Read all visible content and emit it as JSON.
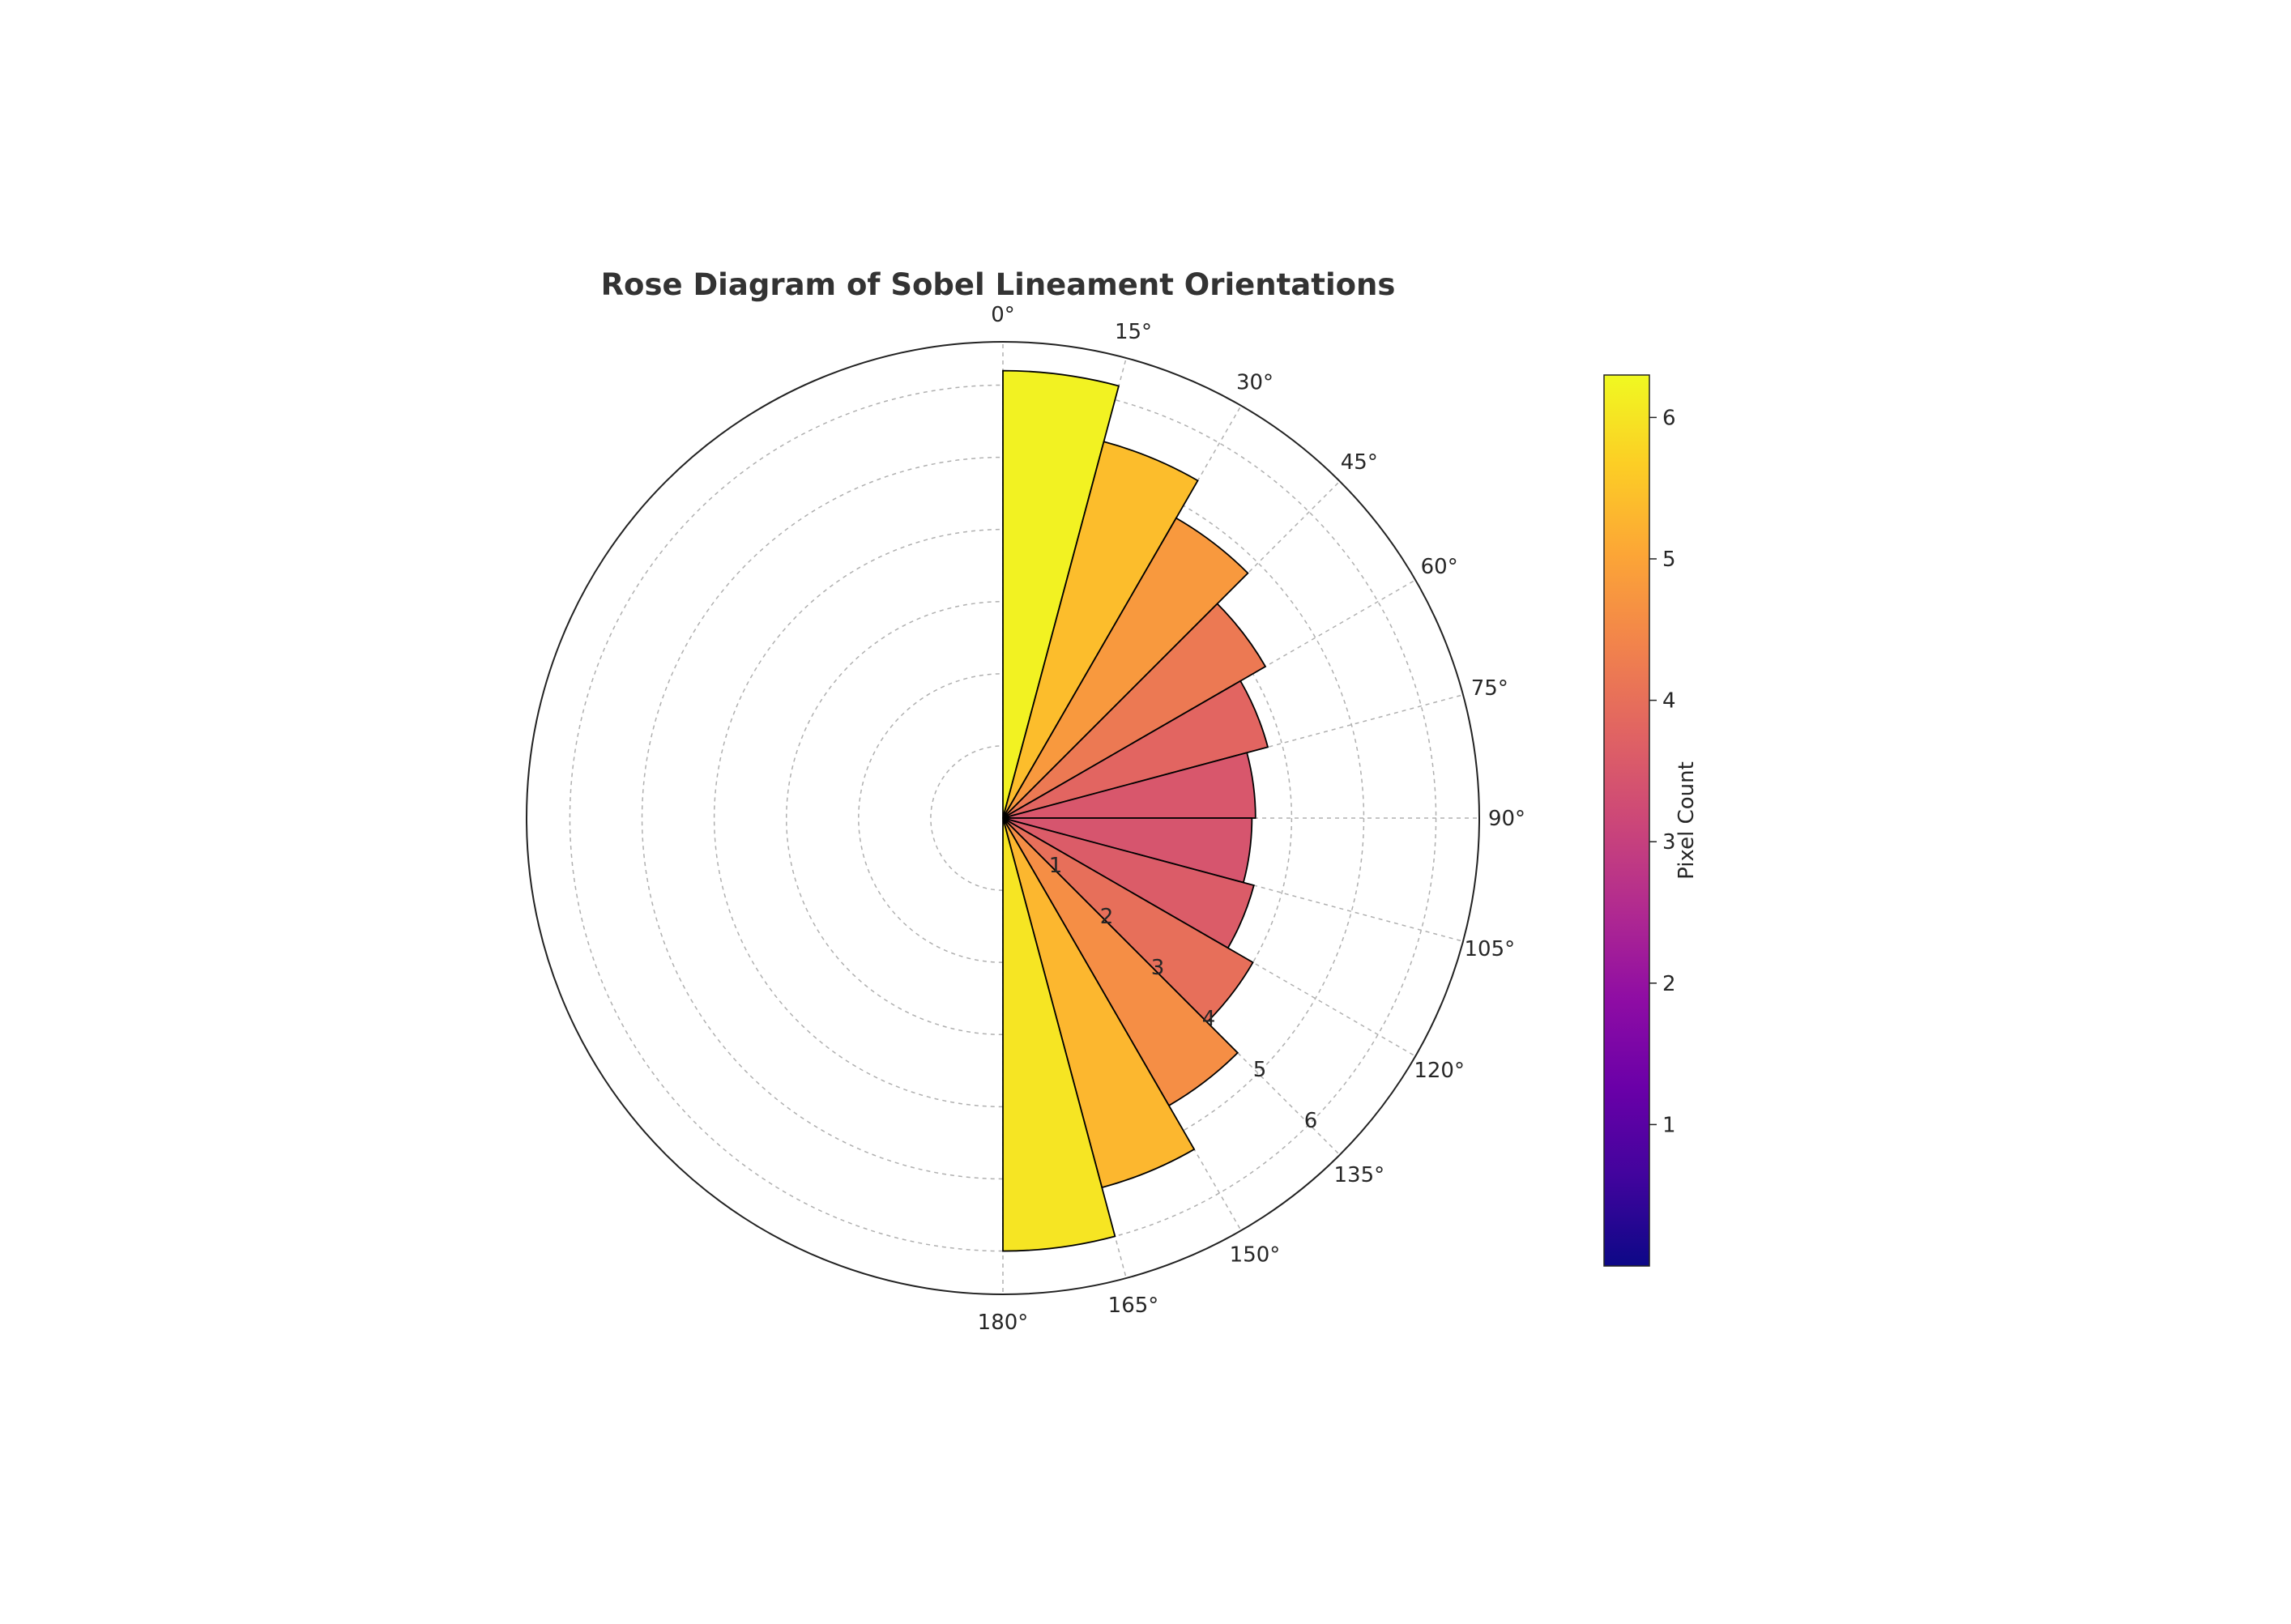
{
  "chart_data": {
    "type": "rose",
    "title": "Rose Diagram of Sobel Lineament Orientations",
    "theta_direction": "clockwise",
    "theta_zero": "top",
    "bin_width_deg": 15,
    "bins": [
      {
        "start": 0,
        "end": 15,
        "value": 6.2
      },
      {
        "start": 15,
        "end": 30,
        "value": 5.4
      },
      {
        "start": 30,
        "end": 45,
        "value": 4.8
      },
      {
        "start": 45,
        "end": 60,
        "value": 4.2
      },
      {
        "start": 60,
        "end": 75,
        "value": 3.8
      },
      {
        "start": 75,
        "end": 90,
        "value": 3.5
      },
      {
        "start": 90,
        "end": 105,
        "value": 3.45
      },
      {
        "start": 105,
        "end": 120,
        "value": 3.6
      },
      {
        "start": 120,
        "end": 135,
        "value": 4.0
      },
      {
        "start": 135,
        "end": 150,
        "value": 4.6
      },
      {
        "start": 150,
        "end": 165,
        "value": 5.3
      },
      {
        "start": 165,
        "end": 180,
        "value": 6.0
      }
    ],
    "theta_tick_labels": [
      "0°",
      "15°",
      "30°",
      "45°",
      "60°",
      "75°",
      "90°",
      "105°",
      "120°",
      "135°",
      "150°",
      "165°",
      "180°"
    ],
    "theta_ticks_deg": [
      0,
      15,
      30,
      45,
      60,
      75,
      90,
      105,
      120,
      135,
      150,
      165,
      180
    ],
    "r_ticks": [
      1,
      2,
      3,
      4,
      5,
      6
    ],
    "r_tick_labels": [
      "1",
      "2",
      "3",
      "4",
      "5",
      "6"
    ],
    "r_max": 6.6,
    "r_label_angle_deg": 135,
    "grid": true,
    "colormap": "plasma",
    "colorbar": {
      "label": "Pixel Count",
      "range": [
        0,
        6.3
      ],
      "ticks": [
        1,
        2,
        3,
        4,
        5,
        6
      ],
      "tick_labels": [
        "1",
        "2",
        "3",
        "4",
        "5",
        "6"
      ],
      "placement": "right"
    }
  }
}
